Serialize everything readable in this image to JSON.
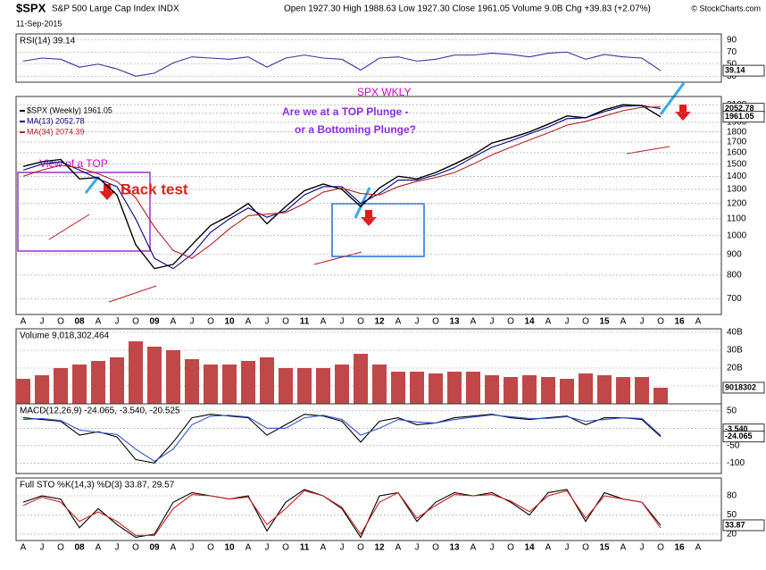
{
  "header": {
    "symbol": "$SPX",
    "name": "S&P 500 Large Cap Index INDX",
    "date": "11-Sep-2015",
    "quote": "Open 1927.30  High 1988.63  Low 1927.30  Close 1961.05  Volume 9.0B  Chg +39.83 (+2.07%)",
    "credit": "© StockCharts.com"
  },
  "annotations": [
    "SPX WKLY",
    "Are we at a TOP Plunge -",
    "or a Bottoming Plunge?",
    "View of a TOP",
    "Back test"
  ],
  "chart_data": [
    {
      "type": "line",
      "title": "RSI(14) 39.14",
      "ylim": [
        20,
        100
      ],
      "yticks": [
        30,
        50,
        70,
        90
      ],
      "grid": true,
      "series": [
        {
          "color": "#3333a0",
          "values": [
            55,
            60,
            58,
            45,
            50,
            42,
            30,
            35,
            52,
            62,
            60,
            58,
            62,
            45,
            60,
            65,
            60,
            58,
            40,
            60,
            62,
            55,
            58,
            65,
            65,
            68,
            66,
            62,
            68,
            70,
            58,
            66,
            62,
            60,
            39.14,
            null,
            null
          ]
        }
      ],
      "markers": [
        {
          "value": 39.14,
          "label": "39.14"
        }
      ]
    },
    {
      "type": "line",
      "log_scale": true,
      "ylim": [
        640,
        2200
      ],
      "yticks": [
        700,
        800,
        900,
        1000,
        1100,
        1200,
        1300,
        1400,
        1500,
        1600,
        1700,
        1800,
        1900,
        2000,
        2100
      ],
      "grid": true,
      "categories": [
        "A",
        "J",
        "O",
        "08",
        "A",
        "J",
        "O",
        "09",
        "A",
        "J",
        "O",
        "10",
        "A",
        "J",
        "O",
        "11",
        "A",
        "J",
        "O",
        "12",
        "A",
        "J",
        "O",
        "13",
        "A",
        "J",
        "O",
        "14",
        "A",
        "J",
        "O",
        "15",
        "A",
        "J",
        "O",
        "16",
        "A"
      ],
      "series": [
        {
          "name": "$SPX (Weekly) 1961.05",
          "color": "#000000",
          "values": [
            1480,
            1520,
            1540,
            1380,
            1390,
            1260,
            950,
            830,
            850,
            950,
            1060,
            1120,
            1200,
            1070,
            1180,
            1290,
            1340,
            1300,
            1180,
            1310,
            1400,
            1380,
            1430,
            1500,
            1580,
            1690,
            1740,
            1800,
            1880,
            1970,
            1950,
            2040,
            2100,
            2090,
            1961,
            null,
            null
          ]
        },
        {
          "name": "MA(13) 2052.78",
          "color": "#000080",
          "values": [
            1450,
            1500,
            1520,
            1450,
            1380,
            1320,
            1100,
            880,
            830,
            900,
            1020,
            1100,
            1170,
            1110,
            1150,
            1260,
            1320,
            1320,
            1200,
            1270,
            1370,
            1370,
            1410,
            1470,
            1560,
            1650,
            1710,
            1780,
            1850,
            1940,
            1950,
            2020,
            2080,
            2090,
            2052.78,
            null,
            null
          ]
        },
        {
          "name": "MA(34) 2074.39",
          "color": "#b22222",
          "values": [
            1400,
            1450,
            1490,
            1470,
            1420,
            1360,
            1240,
            1050,
            920,
            880,
            950,
            1040,
            1120,
            1130,
            1140,
            1200,
            1280,
            1310,
            1270,
            1260,
            1320,
            1360,
            1390,
            1430,
            1500,
            1580,
            1650,
            1720,
            1790,
            1870,
            1910,
            1970,
            2030,
            2070,
            2074.39,
            null,
            null
          ]
        }
      ],
      "markers": [
        {
          "value": 2052.78,
          "label": "2052.78"
        },
        {
          "value": 1961.05,
          "label": "1961.05"
        }
      ]
    },
    {
      "type": "bar",
      "title": "Volume 9,018,302,464",
      "ylim": [
        0,
        42000000000
      ],
      "yticks": [
        {
          "value": 10000000000,
          "label": "10B"
        },
        {
          "value": 20000000000,
          "label": "20B"
        },
        {
          "value": 30000000000,
          "label": "30B"
        },
        {
          "value": 40000000000,
          "label": "40B"
        }
      ],
      "grid": true,
      "series": [
        {
          "color": "#c04848",
          "values": [
            14000000000,
            16000000000,
            20000000000,
            22000000000,
            24000000000,
            26000000000,
            35000000000,
            32000000000,
            30000000000,
            25000000000,
            22000000000,
            22000000000,
            24000000000,
            26000000000,
            20000000000,
            20000000000,
            20000000000,
            22000000000,
            28000000000,
            22000000000,
            18000000000,
            18000000000,
            17000000000,
            18000000000,
            18000000000,
            16000000000,
            15000000000,
            16000000000,
            15000000000,
            14000000000,
            17000000000,
            16000000000,
            15000000000,
            15000000000,
            9018302464,
            null,
            null
          ]
        }
      ],
      "markers": [
        {
          "value": 9018302464,
          "label": "9018302"
        }
      ]
    },
    {
      "type": "line",
      "title": "MACD(12,26,9) -24.065, -3.540, -20.525",
      "ylim": [
        -130,
        70
      ],
      "yticks": [
        -100,
        -50,
        0,
        50
      ],
      "grid": true,
      "series": [
        {
          "color": "#000000",
          "values": [
            30,
            25,
            20,
            -20,
            -10,
            -25,
            -90,
            -100,
            -40,
            30,
            40,
            35,
            30,
            -20,
            10,
            40,
            35,
            20,
            -40,
            20,
            30,
            10,
            15,
            30,
            35,
            40,
            30,
            25,
            30,
            35,
            10,
            30,
            30,
            25,
            -24.065,
            null,
            null
          ]
        },
        {
          "color": "#3355cc",
          "values": [
            25,
            28,
            22,
            -5,
            -12,
            -18,
            -60,
            -95,
            -60,
            10,
            35,
            37,
            32,
            0,
            0,
            30,
            37,
            25,
            -20,
            0,
            25,
            18,
            15,
            25,
            32,
            38,
            33,
            28,
            28,
            33,
            20,
            25,
            30,
            28,
            -20.525,
            null,
            null
          ]
        }
      ],
      "markers": [
        {
          "value": -3.54,
          "label": "-3.540"
        },
        {
          "value": -24.065,
          "label": "-24.065"
        }
      ]
    },
    {
      "type": "line",
      "title": "Full STO %K(14,3) %D(3) 33.87, 29.57",
      "ylim": [
        10,
        108
      ],
      "yticks": [
        20,
        50,
        80
      ],
      "grid": true,
      "categories": [
        "A",
        "J",
        "O",
        "08",
        "A",
        "J",
        "O",
        "09",
        "A",
        "J",
        "O",
        "10",
        "A",
        "J",
        "O",
        "11",
        "A",
        "J",
        "O",
        "12",
        "A",
        "J",
        "O",
        "13",
        "A",
        "J",
        "O",
        "14",
        "A",
        "J",
        "O",
        "15",
        "A",
        "J",
        "O",
        "16",
        "A"
      ],
      "series": [
        {
          "color": "#000000",
          "values": [
            70,
            80,
            75,
            30,
            60,
            35,
            15,
            20,
            70,
            85,
            80,
            75,
            80,
            25,
            70,
            90,
            80,
            60,
            15,
            80,
            85,
            40,
            70,
            85,
            80,
            85,
            70,
            50,
            85,
            90,
            40,
            85,
            75,
            70,
            33.87,
            null,
            null
          ]
        },
        {
          "color": "#cc2222",
          "values": [
            65,
            78,
            70,
            40,
            55,
            40,
            18,
            18,
            60,
            82,
            80,
            75,
            78,
            35,
            60,
            88,
            80,
            62,
            20,
            70,
            85,
            45,
            65,
            82,
            80,
            82,
            72,
            55,
            80,
            88,
            45,
            80,
            75,
            70,
            29.57,
            null,
            null
          ]
        }
      ],
      "markers": [
        {
          "value": 33.87,
          "label": "33.87"
        }
      ]
    }
  ]
}
